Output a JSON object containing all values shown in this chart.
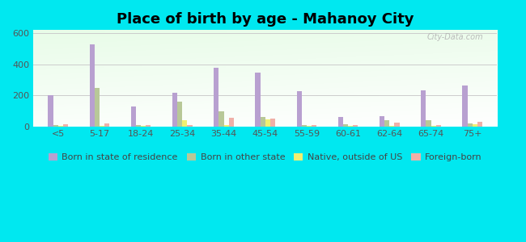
{
  "title": "Place of birth by age - Mahanoy City",
  "categories": [
    "<5",
    "5-17",
    "18-24",
    "25-34",
    "35-44",
    "45-54",
    "55-59",
    "60-61",
    "62-64",
    "65-74",
    "75+"
  ],
  "series": {
    "Born in state of residence": [
      200,
      530,
      130,
      218,
      375,
      345,
      225,
      60,
      68,
      232,
      265
    ],
    "Born in other state": [
      10,
      248,
      10,
      158,
      98,
      58,
      8,
      15,
      38,
      38,
      18
    ],
    "Native, outside of US": [
      5,
      5,
      5,
      42,
      10,
      45,
      5,
      5,
      5,
      5,
      14
    ],
    "Foreign-born": [
      12,
      18,
      8,
      8,
      55,
      50,
      10,
      8,
      25,
      10,
      30
    ]
  },
  "colors": {
    "Born in state of residence": "#b8a0d0",
    "Born in other state": "#b8c898",
    "Native, outside of US": "#f0f070",
    "Foreign-born": "#f0b0a8"
  },
  "ylim": [
    0,
    620
  ],
  "yticks": [
    0,
    200,
    400,
    600
  ],
  "background_outer": "#00e8f0",
  "grid_color": "#cccccc",
  "watermark": "City-Data.com",
  "bar_width": 0.12,
  "legend_fontsize": 8,
  "title_fontsize": 13
}
